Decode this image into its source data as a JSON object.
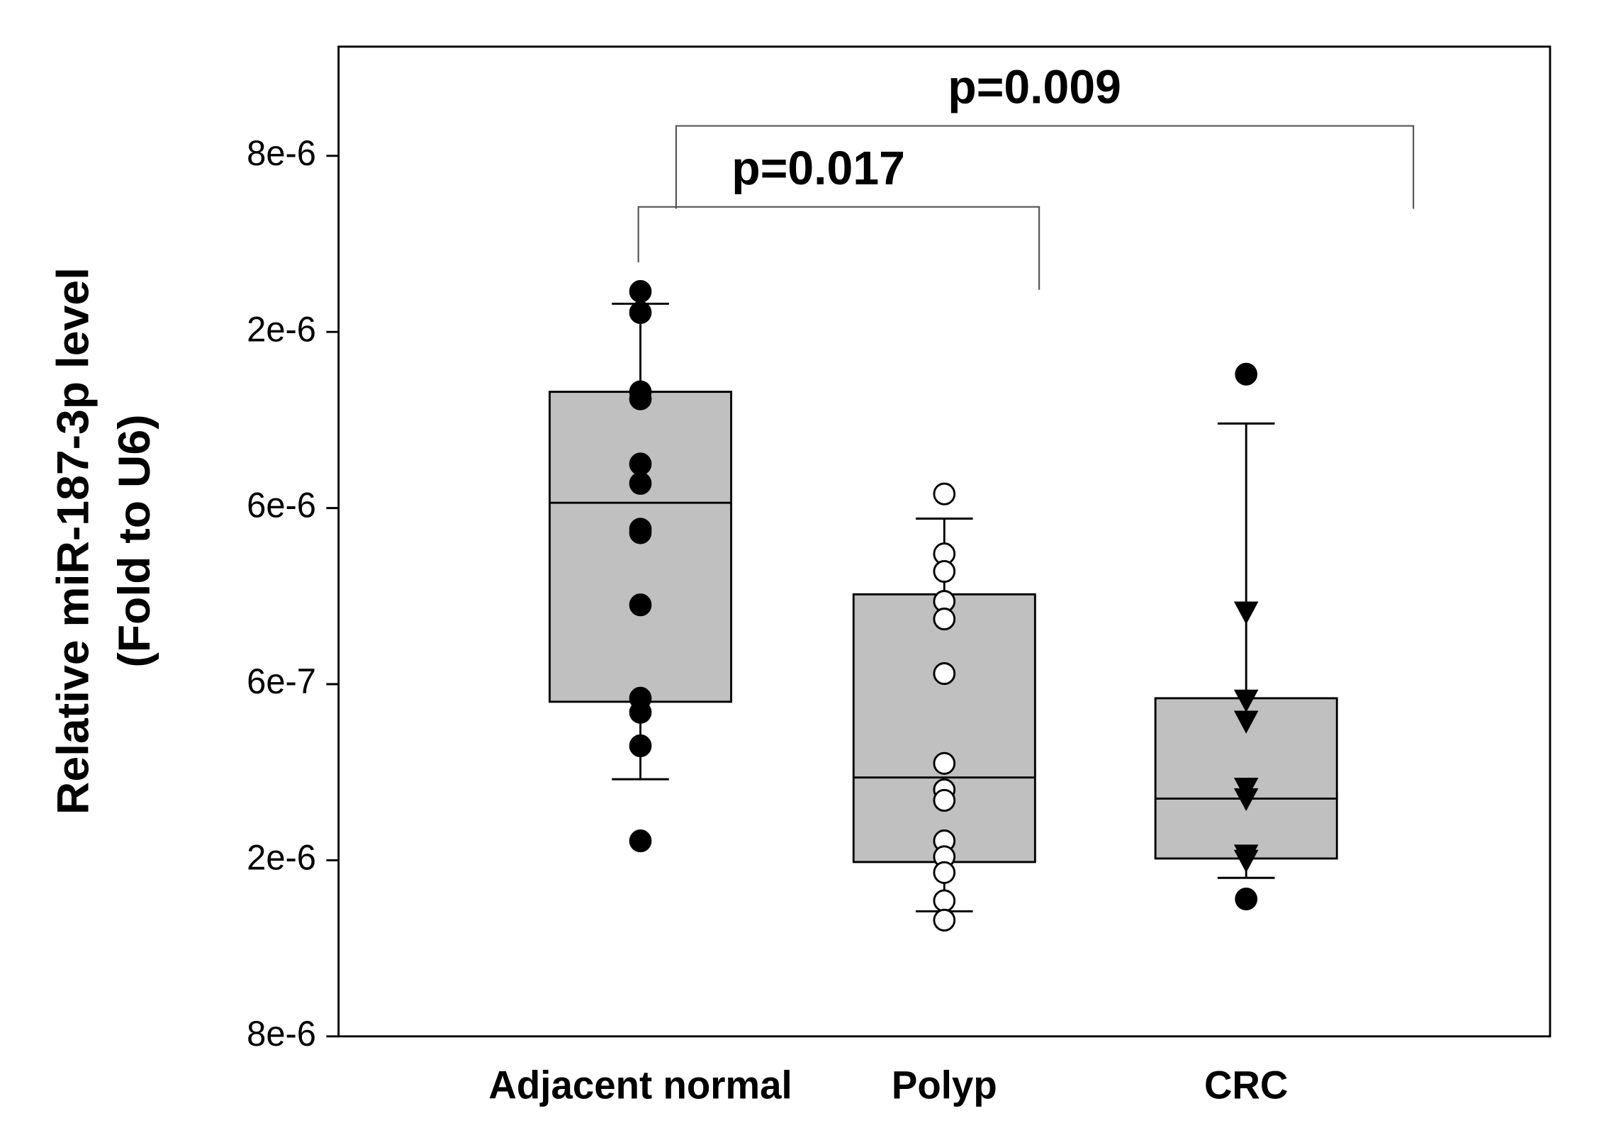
{
  "chart_data": {
    "type": "box",
    "y_label_lines": [
      "Relative miR-187-3p level",
      "(Fold to U6)"
    ],
    "categories": [
      "Adjacent normal",
      "Polyp",
      "CRC"
    ],
    "ylim": [
      0,
      5.62
    ],
    "yticks": [
      {
        "value": 0,
        "label": "8e-6"
      },
      {
        "value": 1,
        "label": "2e-6"
      },
      {
        "value": 2,
        "label": "6e-7"
      },
      {
        "value": 3,
        "label": "6e-6"
      },
      {
        "value": 4,
        "label": "2e-6"
      },
      {
        "value": 5,
        "label": "8e-6"
      }
    ],
    "box_color": "#c0c0c0",
    "groups": [
      {
        "marker": "circle-filled",
        "q1": 1.9,
        "median": 3.03,
        "q3": 3.66,
        "whisker_low": 1.46,
        "whisker_high": 4.16,
        "points": [
          4.23,
          4.11,
          3.66,
          3.62,
          3.25,
          3.14,
          2.88,
          2.86,
          2.45,
          1.92,
          1.84,
          1.65,
          1.11
        ],
        "outliers": []
      },
      {
        "marker": "circle-open",
        "q1": 0.99,
        "median": 1.47,
        "q3": 2.51,
        "whisker_low": 0.71,
        "whisker_high": 2.94,
        "points": [
          3.08,
          2.74,
          2.64,
          2.47,
          2.37,
          2.06,
          1.55,
          1.4,
          1.34,
          1.11,
          1.02,
          0.93,
          0.77,
          0.66
        ],
        "outliers": []
      },
      {
        "marker": "triangle-down",
        "q1": 1.01,
        "median": 1.35,
        "q3": 1.92,
        "whisker_low": 0.9,
        "whisker_high": 3.48,
        "points": [
          2.41,
          1.91,
          1.79,
          1.41,
          1.35,
          1.03,
          1.0
        ],
        "outliers": [
          3.76,
          0.78
        ]
      }
    ],
    "annotations": [
      {
        "text": "p=0.017",
        "from": 0,
        "to": 1,
        "y": 4.71
      },
      {
        "text": "p=0.009",
        "from": 0,
        "to": 2,
        "y": 5.17
      }
    ]
  }
}
